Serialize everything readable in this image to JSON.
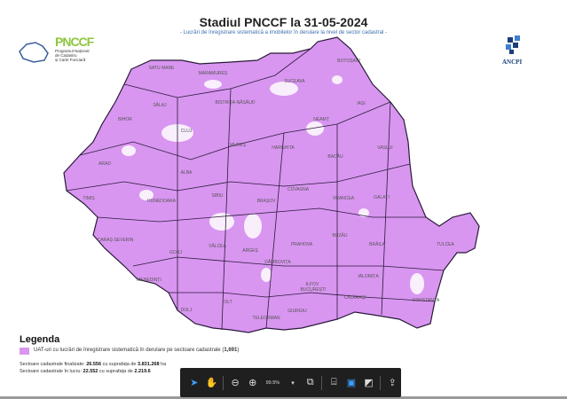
{
  "map": {
    "title": "Stadiul PNCCF la 31-05-2024",
    "subtitle": "- Lucrări de înregistrare sistematică a imobilelor în derulare la nivel de sector cadastral -",
    "logo_left": {
      "name": "PNCCF",
      "lines": [
        "Programul Național",
        "de Cadastru",
        "și Carte Funciară"
      ]
    },
    "logo_right": "ANCPI",
    "fill_color": "#d896f0",
    "border_color": "#2a1a3a",
    "counties": [
      "SATU MARE",
      "MARAMUREȘ",
      "BOTOȘANI",
      "SUCEAVA",
      "SĂLAJ",
      "BISTRIȚA-NĂSĂUD",
      "IAȘI",
      "BIHOR",
      "CLUJ",
      "NEAMȚ",
      "MUREȘ",
      "HARGHITA",
      "BACĂU",
      "VASLUI",
      "ARAD",
      "ALBA",
      "COVASNA",
      "TIMIȘ",
      "HUNEDOARA",
      "SIBIU",
      "BRAȘOV",
      "VRANCEA",
      "GALAȚI",
      "CARAȘ-SEVERIN",
      "GORJ",
      "VÂLCEA",
      "ARGEȘ",
      "DÂMBOVIȚA",
      "PRAHOVA",
      "BUZĂU",
      "BRĂILA",
      "TULCEA",
      "MEHEDINȚI",
      "ILFOV",
      "BUCUREȘTI",
      "IALOMIȚA",
      "CĂLĂRAȘI",
      "CONSTANȚA",
      "DOLJ",
      "OLT",
      "TELEORMAN",
      "GIURGIU"
    ],
    "legend": {
      "title": "Legenda",
      "item": "UAT-uri cu lucrări de înregistrare sistematică în derulare pe sectoare cadastrale (",
      "count": "1,691",
      "item_end": ")"
    },
    "stats": [
      {
        "label": "Sectoare cadastrale finalizate: ",
        "value": "26.556",
        "mid": " cu suprafața de ",
        "area": "3.831.268",
        "unit": " ha"
      },
      {
        "label": "Sectoare cadastrale în lucru: ",
        "value": "22.552",
        "mid": " cu suprafața de ",
        "area": "2.219.6",
        "unit": ""
      }
    ]
  },
  "toolbar": {
    "zoom": "99.5%",
    "icons": [
      "select-cursor-icon",
      "hand-pan-icon",
      "zoom-out-icon",
      "zoom-in-icon",
      "zoom-dropdown-icon",
      "copy-page-icon",
      "fit-page-icon",
      "fit-width-icon",
      "thumbnail-icon",
      "export-icon"
    ]
  }
}
